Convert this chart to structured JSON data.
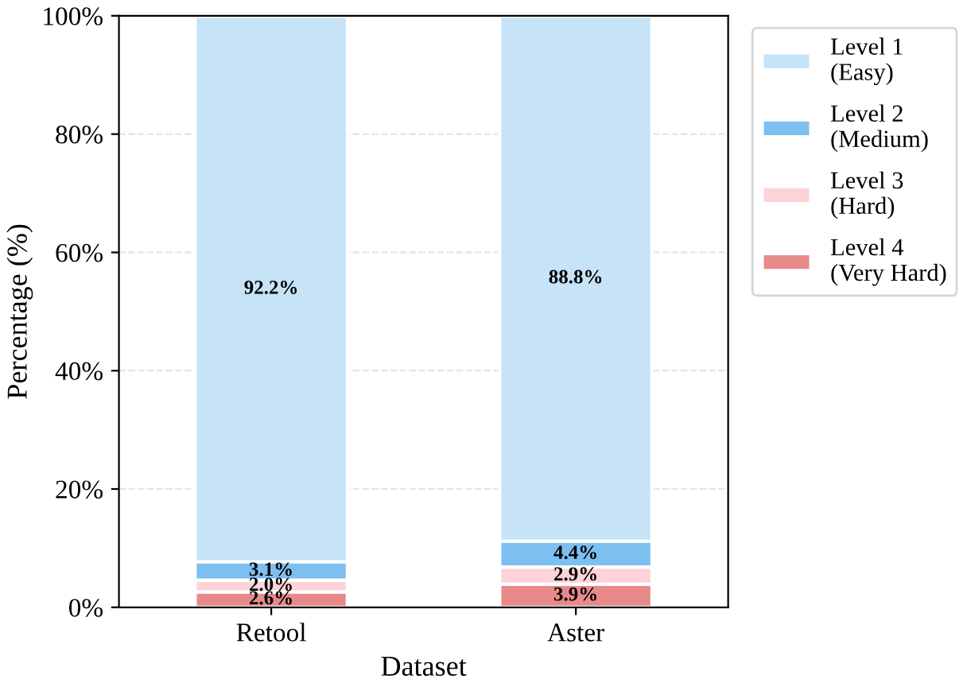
{
  "chart_data": {
    "type": "bar",
    "stacked": true,
    "xlabel": "Dataset",
    "ylabel": "Percentage (%)",
    "categories": [
      "Retool",
      "Aster"
    ],
    "series": [
      {
        "name": "Level 4\n(Very Hard)",
        "color": "#e88a8a",
        "values": [
          2.6,
          3.9
        ],
        "value_labels": [
          "2.6%",
          "3.9%"
        ]
      },
      {
        "name": "Level 3\n(Hard)",
        "color": "#fdd3d8",
        "values": [
          2.0,
          2.9
        ],
        "value_labels": [
          "2.0%",
          "2.9%"
        ]
      },
      {
        "name": "Level 2\n(Medium)",
        "color": "#7dbff0",
        "values": [
          3.1,
          4.4
        ],
        "value_labels": [
          "3.1%",
          "4.4%"
        ]
      },
      {
        "name": "Level 1\n(Easy)",
        "color": "#c6e3f8",
        "values": [
          92.2,
          88.8
        ],
        "value_labels": [
          "92.2%",
          "88.8%"
        ]
      }
    ],
    "ylim": [
      0,
      100
    ],
    "yticks": [
      {
        "value": 0,
        "label": "0%"
      },
      {
        "value": 20,
        "label": "20%"
      },
      {
        "value": 40,
        "label": "40%"
      },
      {
        "value": 60,
        "label": "60%"
      },
      {
        "value": 80,
        "label": "80%"
      },
      {
        "value": 100,
        "label": "100%"
      }
    ],
    "grid": "y",
    "legend": "top right"
  }
}
